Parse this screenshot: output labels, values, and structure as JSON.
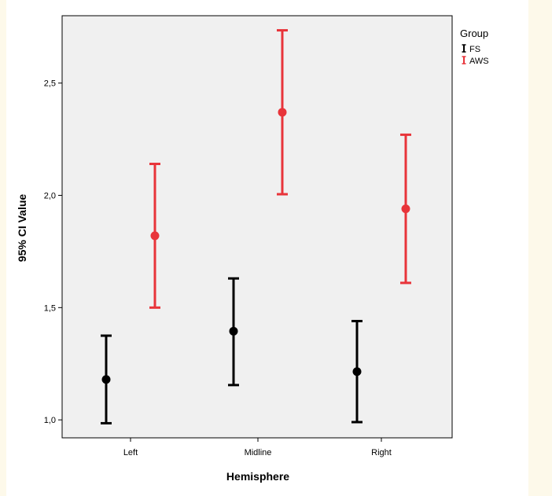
{
  "chart_data": {
    "type": "errorbar",
    "title": "",
    "xlabel": "Hemisphere",
    "ylabel": "95% CI Value",
    "categories": [
      "Left",
      "Midline",
      "Right"
    ],
    "ylim": [
      0.92,
      2.8
    ],
    "yticks": [
      "1,0",
      "1,5",
      "2,0",
      "2,5"
    ],
    "ytick_values": [
      1.0,
      1.5,
      2.0,
      2.5
    ],
    "grid": false,
    "legend": {
      "title": "Group",
      "placement": "outside-top-right"
    },
    "series": [
      {
        "name": "FS",
        "color": "#000000",
        "mean": [
          1.18,
          1.395,
          1.215
        ],
        "lower": [
          0.985,
          1.155,
          0.99
        ],
        "upper": [
          1.375,
          1.63,
          1.44
        ]
      },
      {
        "name": "AWS",
        "color": "#e8343a",
        "mean": [
          1.82,
          2.37,
          1.94
        ],
        "lower": [
          1.5,
          2.005,
          1.61
        ],
        "upper": [
          2.14,
          2.735,
          2.27
        ]
      }
    ]
  },
  "colors": {
    "plot_background": "#f0f0f0",
    "page_background": "#ffffff",
    "side_strip": "#fdf9ea"
  }
}
